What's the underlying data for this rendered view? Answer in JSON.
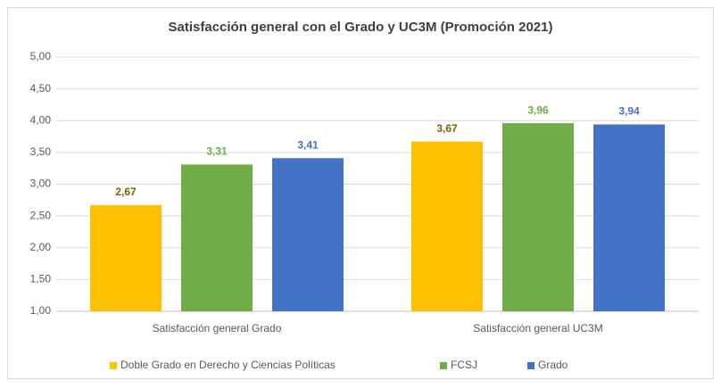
{
  "chart_data": {
    "type": "bar",
    "title": "Satisfacción general con el Grado y UC3M (Promoción 2021)",
    "categories": [
      "Satisfacción general Grado",
      "Satisfacción general UC3M"
    ],
    "series": [
      {
        "name": "Doble Grado en Derecho y Ciencias Políticas",
        "color": "#FFC000",
        "label_color": "#7F6000",
        "values": [
          2.67,
          3.67
        ],
        "value_labels": [
          "2,67",
          "3,67"
        ]
      },
      {
        "name": "FCSJ",
        "color": "#70AD47",
        "label_color": "#70AD47",
        "values": [
          3.31,
          3.96
        ],
        "value_labels": [
          "3,31",
          "3,96"
        ]
      },
      {
        "name": "Grado",
        "color": "#4472C4",
        "label_color": "#4472C4",
        "values": [
          3.41,
          3.94
        ],
        "value_labels": [
          "3,41",
          "3,94"
        ]
      }
    ],
    "ylim": [
      1,
      5
    ],
    "yticks": [
      {
        "value": 1,
        "label": "1,00"
      },
      {
        "value": 1.5,
        "label": "1,50"
      },
      {
        "value": 2,
        "label": "2,00"
      },
      {
        "value": 2.5,
        "label": "2,50"
      },
      {
        "value": 3,
        "label": "3,00"
      },
      {
        "value": 3.5,
        "label": "3,50"
      },
      {
        "value": 4,
        "label": "4,00"
      },
      {
        "value": 4.5,
        "label": "4,50"
      },
      {
        "value": 5,
        "label": "5,00"
      }
    ],
    "grid": true,
    "legend": "bottom"
  }
}
